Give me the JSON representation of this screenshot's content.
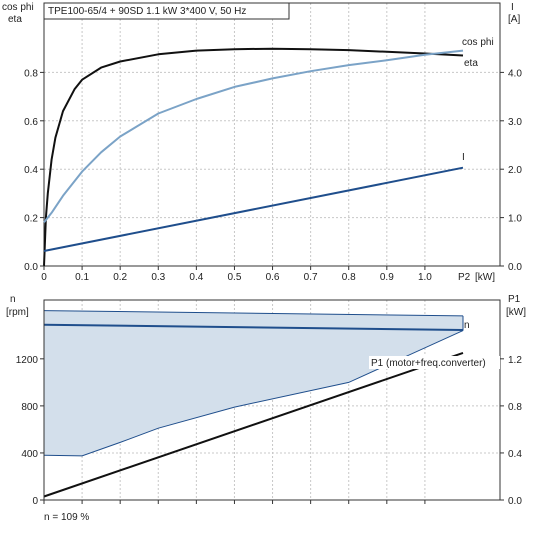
{
  "chart_data": [
    {
      "type": "line",
      "title": "TPE100-65/4 + 90SD   1.1 kW   3*400 V, 50 Hz",
      "xlabel": "P2 [kW]",
      "xlabel_parts": [
        "P2",
        "[kW]"
      ],
      "ylabel": [
        "cos phi",
        "eta"
      ],
      "ylabel_right": [
        "I",
        "[A]"
      ],
      "xlim": [
        0,
        1.1
      ],
      "ylim": [
        0,
        1.0
      ],
      "ylim_right": [
        0,
        5.0
      ],
      "x_ticks": [
        "0",
        "0.1",
        "0.2",
        "0.3",
        "0.4",
        "0.5",
        "0.6",
        "0.7",
        "0.8",
        "0.9",
        "1.0"
      ],
      "y_ticks": [
        "0.0",
        "0.2",
        "0.4",
        "0.6",
        "0.8"
      ],
      "y_ticks_right": [
        "0.0",
        "1.0",
        "2.0",
        "3.0",
        "4.0"
      ],
      "grid": true,
      "series": [
        {
          "name": "eta",
          "axis": "left",
          "color": "#111111",
          "points": [
            [
              0.0,
              0.0
            ],
            [
              0.005,
              0.2
            ],
            [
              0.01,
              0.3
            ],
            [
              0.02,
              0.44
            ],
            [
              0.03,
              0.53
            ],
            [
              0.05,
              0.64
            ],
            [
              0.08,
              0.73
            ],
            [
              0.1,
              0.77
            ],
            [
              0.15,
              0.82
            ],
            [
              0.2,
              0.845
            ],
            [
              0.3,
              0.875
            ],
            [
              0.4,
              0.89
            ],
            [
              0.5,
              0.896
            ],
            [
              0.6,
              0.898
            ],
            [
              0.7,
              0.896
            ],
            [
              0.8,
              0.892
            ],
            [
              0.9,
              0.885
            ],
            [
              1.0,
              0.878
            ],
            [
              1.1,
              0.87
            ]
          ]
        },
        {
          "name": "cos phi",
          "axis": "left",
          "color": "#7ba3c7",
          "points": [
            [
              0.0,
              0.18
            ],
            [
              0.02,
              0.22
            ],
            [
              0.05,
              0.29
            ],
            [
              0.1,
              0.39
            ],
            [
              0.15,
              0.47
            ],
            [
              0.2,
              0.535
            ],
            [
              0.3,
              0.63
            ],
            [
              0.4,
              0.69
            ],
            [
              0.5,
              0.74
            ],
            [
              0.6,
              0.775
            ],
            [
              0.7,
              0.805
            ],
            [
              0.8,
              0.83
            ],
            [
              0.9,
              0.85
            ],
            [
              1.0,
              0.873
            ],
            [
              1.1,
              0.89
            ]
          ]
        },
        {
          "name": "I",
          "axis": "right",
          "color": "#1f4e8c",
          "points": [
            [
              0.0,
              0.31
            ],
            [
              1.1,
              2.03
            ]
          ]
        }
      ]
    },
    {
      "type": "area",
      "xlabel": "",
      "ylabel": [
        "n",
        "[rpm]"
      ],
      "ylabel_right": [
        "P1",
        "[kW]"
      ],
      "xlim": [
        0,
        1.1
      ],
      "ylim": [
        0,
        1700
      ],
      "ylim_right": [
        0,
        1.7
      ],
      "y_ticks": [
        "0",
        "400",
        "800",
        "1200"
      ],
      "y_ticks_right": [
        "0.0",
        "0.4",
        "0.8",
        "1.2"
      ],
      "grid": true,
      "series": [
        {
          "name": "n",
          "axis": "left",
          "kind": "band",
          "color": "#1f4e8c",
          "fill": "#d3dfeb",
          "upper": [
            [
              0.0,
              1610
            ],
            [
              1.1,
              1565
            ]
          ],
          "lower": [
            [
              0.0,
              380
            ],
            [
              0.1,
              375
            ],
            [
              0.2,
              490
            ],
            [
              0.3,
              610
            ],
            [
              0.5,
              790
            ],
            [
              0.8,
              1000
            ],
            [
              1.1,
              1440
            ]
          ],
          "line": [
            [
              0.0,
              1490
            ],
            [
              1.1,
              1445
            ]
          ]
        },
        {
          "name": "P1 (motor+freq.converter)",
          "axis": "right",
          "color": "#111111",
          "points": [
            [
              0.0,
              0.03
            ],
            [
              1.1,
              1.25
            ]
          ]
        }
      ],
      "footnote": "n = 109 %"
    }
  ]
}
